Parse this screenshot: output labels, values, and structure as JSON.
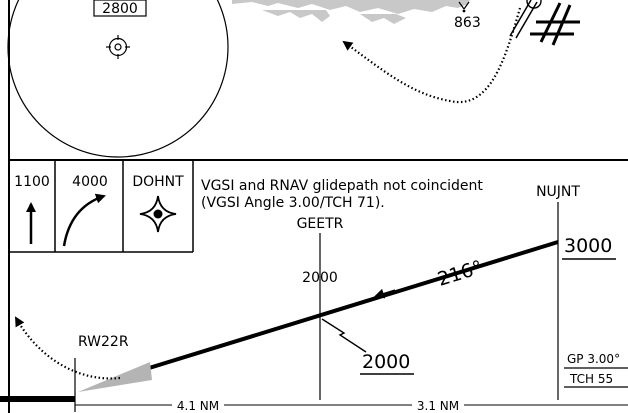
{
  "plan_view": {
    "msa_box": "2800",
    "spot_elevation": "863"
  },
  "profile": {
    "panels": [
      {
        "label": "1100",
        "icon": "arrow-up-icon"
      },
      {
        "label": "4000",
        "icon": "curved-climb-arrow-icon"
      },
      {
        "label": "DOHNT",
        "icon": "fix-star-icon"
      }
    ],
    "note_line1": "VGSI and RNAV glidepath not coincident",
    "note_line2": "(VGSI Angle 3.00/TCH 71).",
    "fixes": {
      "geetr": "GEETR",
      "nujnt": "NUJNT",
      "runway": "RW22R"
    },
    "geetr_altitude": "2000",
    "geetr_crossing_altitude": "2000",
    "nujnt_altitude": "3000",
    "course": "216°",
    "glidepath_label": "GP 3.00°",
    "tch_label": "TCH 55",
    "dist_runway_geetr": "4.1 NM",
    "dist_geetr_nujnt": "3.1 NM"
  },
  "colors": {
    "ink": "#000000",
    "terrain": "#c8c8c8",
    "vgsi": "#b4b4b4"
  }
}
